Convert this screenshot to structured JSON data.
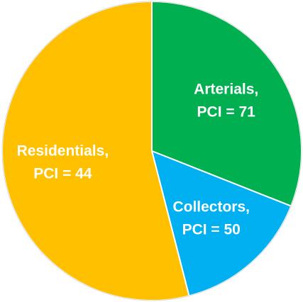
{
  "chart_data": {
    "type": "pie",
    "categories": [
      "Arterials,",
      "Collectors,",
      "Residentials,"
    ],
    "annotations": [
      "PCI = 71",
      "PCI = 50",
      "PCI = 44"
    ],
    "values": [
      31,
      15,
      54
    ],
    "colors": [
      "#00b050",
      "#00b0f0",
      "#ffc000"
    ]
  }
}
